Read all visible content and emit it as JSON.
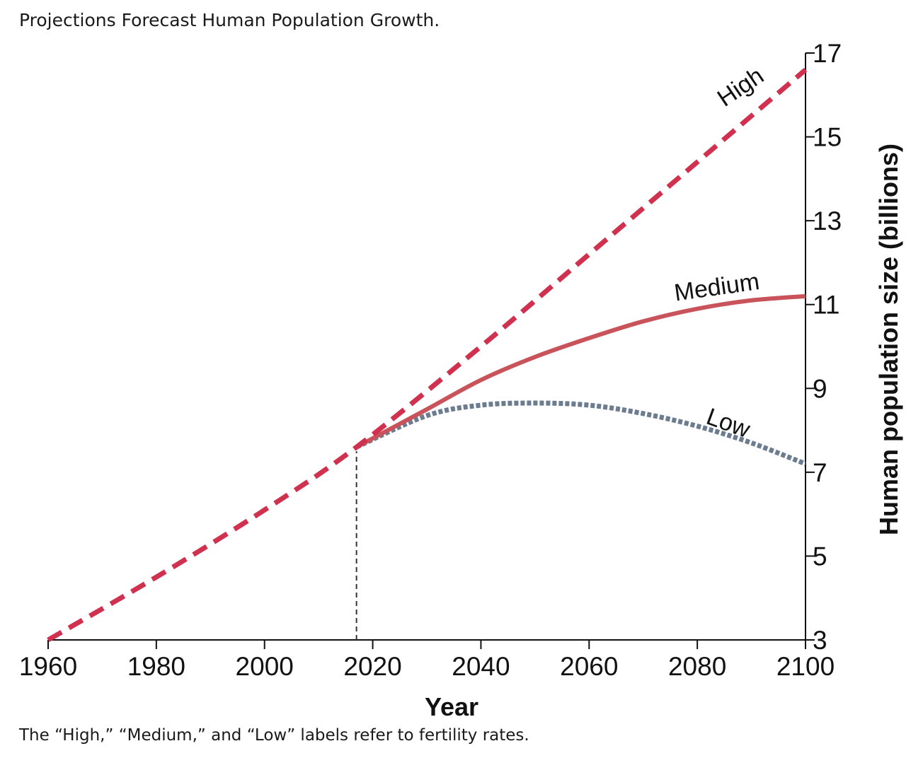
{
  "figure": {
    "title": "Projections Forecast Human Population Growth.",
    "caption": "The “High,” “Medium,” and “Low” labels refer to fertility rates."
  },
  "chart_data": {
    "type": "line",
    "title": "Projections Forecast Human Population Growth.",
    "xlabel": "Year",
    "ylabel": "Human population size (billions)",
    "xlim": [
      1960,
      2100
    ],
    "ylim": [
      3,
      17
    ],
    "xticks": [
      1960,
      1980,
      2000,
      2020,
      2040,
      2060,
      2080,
      2100
    ],
    "yticks": [
      3,
      5,
      7,
      9,
      11,
      13,
      15,
      17
    ],
    "grid": false,
    "legend": "none",
    "y_axis_side": "right",
    "divider_year": 2017,
    "series": [
      {
        "name": "High",
        "style": "dashed",
        "color": "#d0314f",
        "x": [
          1960,
          1980,
          2000,
          2017,
          2040,
          2060,
          2080,
          2100
        ],
        "y": [
          3.0,
          4.5,
          6.1,
          7.6,
          10.0,
          12.2,
          14.4,
          16.6
        ]
      },
      {
        "name": "Medium",
        "style": "solid",
        "color": "#c9535a",
        "x": [
          2017,
          2030,
          2040,
          2050,
          2060,
          2070,
          2080,
          2090,
          2100
        ],
        "y": [
          7.6,
          8.5,
          9.2,
          9.75,
          10.2,
          10.6,
          10.9,
          11.1,
          11.2
        ]
      },
      {
        "name": "Low",
        "style": "dotted",
        "color": "#6b7c8f",
        "x": [
          2017,
          2030,
          2040,
          2050,
          2060,
          2070,
          2080,
          2090,
          2100
        ],
        "y": [
          7.6,
          8.35,
          8.6,
          8.65,
          8.6,
          8.4,
          8.1,
          7.7,
          7.2
        ]
      }
    ]
  }
}
